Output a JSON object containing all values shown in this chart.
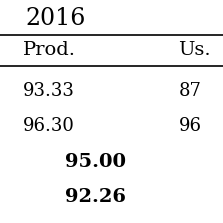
{
  "title": "2016",
  "col1_header": "Prod.",
  "col2_header": "Us.",
  "row1_col1": "93.33",
  "row1_col2": "87",
  "row2_col1": "96.30",
  "row2_col2": "96",
  "bold1": "95.00",
  "bold2": "92.26",
  "bg_color": "#ffffff",
  "text_color": "#000000",
  "font_size_title": 17,
  "font_size_header": 14,
  "font_size_data": 13,
  "font_size_bold": 14
}
